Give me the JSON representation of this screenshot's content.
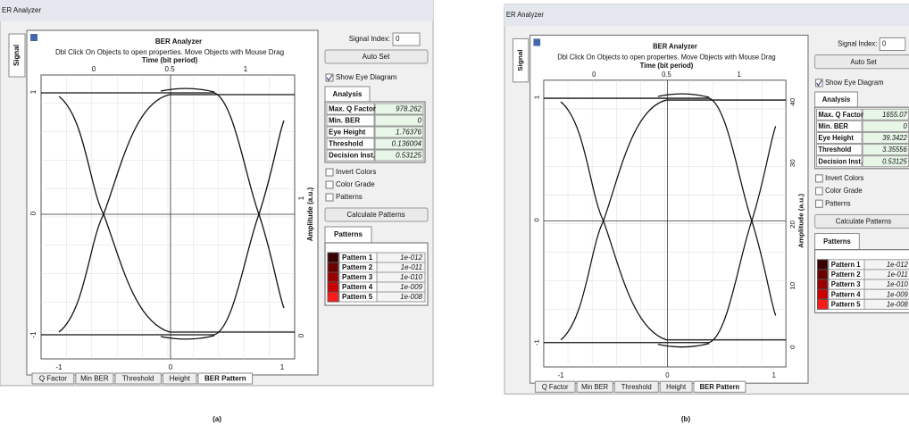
{
  "panels": [
    {
      "window_title": "ER Analyzer",
      "side_tab": "Signal",
      "title": "BER Analyzer",
      "instructions": "Dbl Click On Objects to open properties.  Move Objects with Mouse Drag",
      "x_axis_label": "Time (bit period)",
      "top_ticks": [
        0,
        0.5,
        1
      ],
      "bottom_ticks": [
        -1,
        0,
        1
      ],
      "left_ticks": [
        1,
        0,
        -1
      ],
      "y2_axis_label": "Amplitude (a.u.)",
      "right_ticks": [
        0,
        1
      ],
      "signal_index_label": "Signal Index:",
      "signal_index": 0,
      "auto_set": "Auto Set",
      "show_eye": "Show Eye Diagram",
      "analysis_tab": "Analysis",
      "analysis": [
        {
          "label": "Max. Q Factor",
          "value": 978.262
        },
        {
          "label": "Min. BER",
          "value": 0
        },
        {
          "label": "Eye Height",
          "value": 1.76376
        },
        {
          "label": "Threshold",
          "value": 0.136004
        },
        {
          "label": "Decision Inst.",
          "value": 0.53125
        }
      ],
      "options": [
        "Invert Colors",
        "Color Grade",
        "Patterns"
      ],
      "calculate": "Calculate Patterns",
      "patterns_tab": "Patterns",
      "patterns": [
        {
          "name": "Pattern 1",
          "ber": "1e-012",
          "color": "#3a0000"
        },
        {
          "name": "Pattern 2",
          "ber": "1e-011",
          "color": "#6b0000"
        },
        {
          "name": "Pattern 3",
          "ber": "1e-010",
          "color": "#9a0000"
        },
        {
          "name": "Pattern 4",
          "ber": "1e-009",
          "color": "#cc0000"
        },
        {
          "name": "Pattern 5",
          "ber": "1e-008",
          "color": "#ff1a1a"
        }
      ],
      "bottom_tabs": [
        "Q Factor",
        "Min BER",
        "Threshold",
        "Height",
        "BER Pattern"
      ],
      "caption": "(a)"
    },
    {
      "window_title": "ER Analyzer",
      "side_tab": "Signal",
      "title": "BER Analyzer",
      "instructions": "Dbl Click On Objects to open properties.  Move Objects with Mouse Drag",
      "x_axis_label": "Time (bit period)",
      "top_ticks": [
        0,
        0.5,
        1
      ],
      "bottom_ticks": [
        -1,
        0,
        1
      ],
      "left_ticks": [
        1,
        0,
        -1
      ],
      "y2_axis_label": "Amplitude (a.u.)",
      "right_ticks": [
        0,
        10,
        20,
        30,
        40
      ],
      "signal_index_label": "Signal Index:",
      "signal_index": 0,
      "auto_set": "Auto Set",
      "show_eye": "Show Eye Diagram",
      "analysis_tab": "Analysis",
      "analysis": [
        {
          "label": "Max. Q Factor",
          "value": 1655.07
        },
        {
          "label": "Min. BER",
          "value": 0
        },
        {
          "label": "Eye Height",
          "value": 39.3422
        },
        {
          "label": "Threshold",
          "value": 3.35556
        },
        {
          "label": "Decision Inst.",
          "value": 0.53125
        }
      ],
      "options": [
        "Invert Colors",
        "Color Grade",
        "Patterns"
      ],
      "calculate": "Calculate Patterns",
      "patterns_tab": "Patterns",
      "patterns": [
        {
          "name": "Pattern 1",
          "ber": "1e-012",
          "color": "#3a0000"
        },
        {
          "name": "Pattern 2",
          "ber": "1e-011",
          "color": "#6b0000"
        },
        {
          "name": "Pattern 3",
          "ber": "1e-010",
          "color": "#9a0000"
        },
        {
          "name": "Pattern 4",
          "ber": "1e-009",
          "color": "#cc0000"
        },
        {
          "name": "Pattern 5",
          "ber": "1e-008",
          "color": "#ff1a1a"
        }
      ],
      "bottom_tabs": [
        "Q Factor",
        "Min BER",
        "Threshold",
        "Height",
        "BER Pattern"
      ],
      "caption": "(b)"
    }
  ]
}
